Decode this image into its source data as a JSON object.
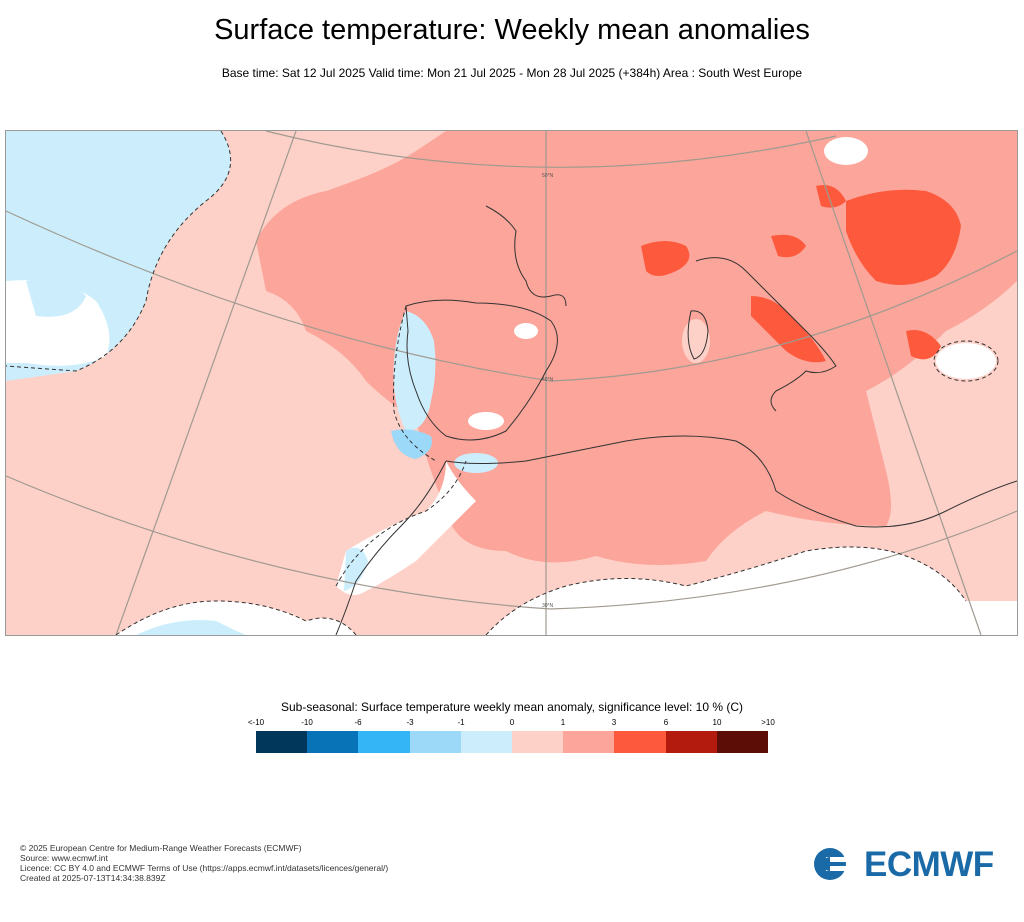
{
  "header": {
    "title": "Surface temperature: Weekly mean anomalies",
    "subtitle": "Base time: Sat 12 Jul 2025 Valid time: Mon 21 Jul 2025 - Mon 28 Jul 2025 (+384h) Area : South West Europe"
  },
  "map": {
    "region": "South West Europe",
    "latitude_labels": [
      "50°N",
      "40°N",
      "30°N"
    ],
    "colors": {
      "ocean_anomaly": "#fdd0c8",
      "land_warm": "#fca59a",
      "hot": "#fd5a3d",
      "cold": "#cceefc",
      "colder": "#9cd8f8",
      "neutral": "#ffffff"
    }
  },
  "legend": {
    "title": "Sub-seasonal: Surface temperature weekly mean anomaly, significance level: 10 % (C)",
    "ticks": [
      "<-10",
      "-10",
      "-6",
      "-3",
      "-1",
      "0",
      "1",
      "3",
      "6",
      "10",
      ">10"
    ],
    "colors": [
      "#00375a",
      "#0873b7",
      "#34b5f6",
      "#9cd8f8",
      "#cceefc",
      "#fdd0c8",
      "#fca59a",
      "#fd5a3d",
      "#b21b0e",
      "#5c0e06"
    ]
  },
  "footer": {
    "lines": [
      "© 2025 European Centre for Medium-Range Weather Forecasts (ECMWF)",
      "Source: www.ecmwf.int",
      "Licence: CC BY 4.0 and ECMWF Terms of Use (https://apps.ecmwf.int/datasets/licences/general/)",
      "Created at 2025-07-13T14:34:38.839Z"
    ]
  },
  "logo": {
    "text": "ECMWF",
    "icon": "ecmwf-logo-icon",
    "color": "#1a6aa8"
  }
}
